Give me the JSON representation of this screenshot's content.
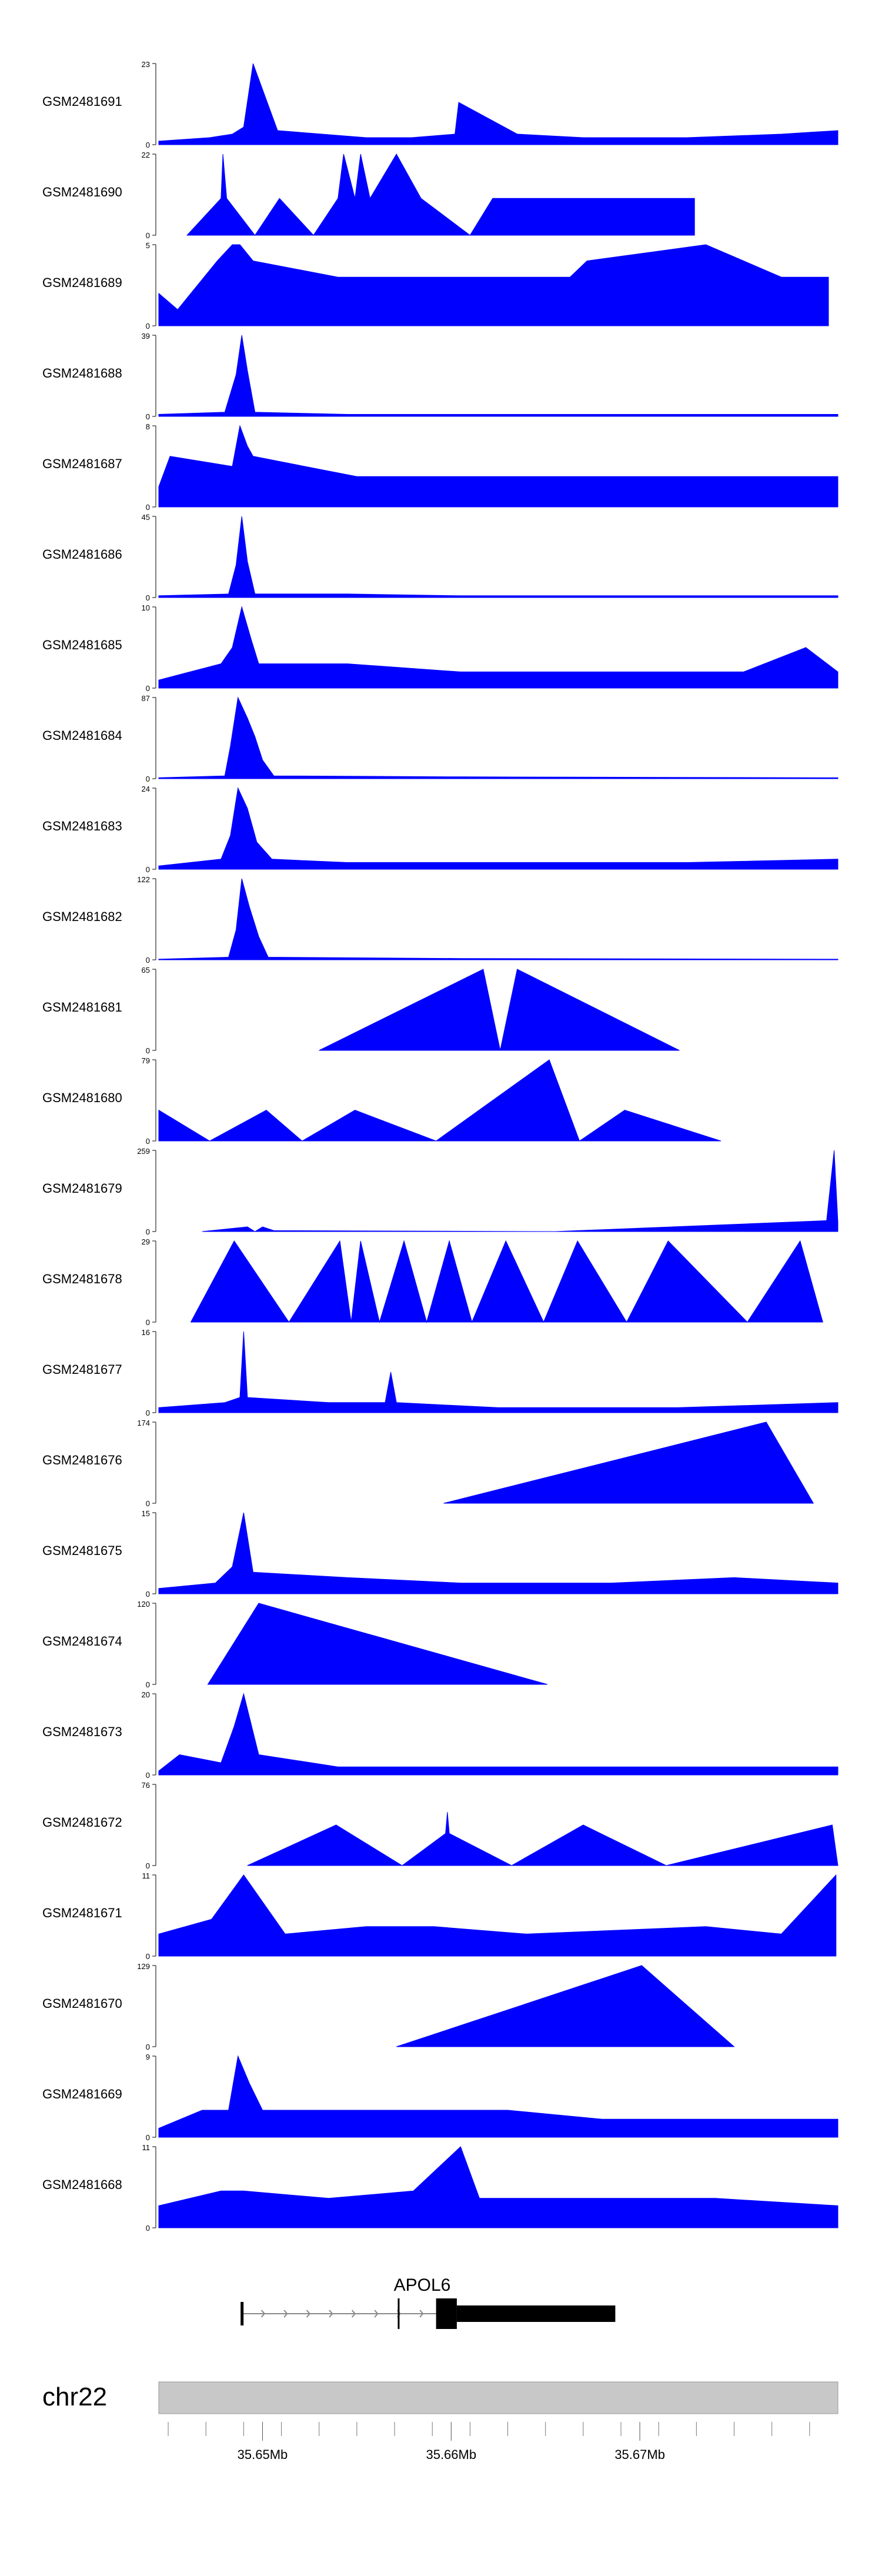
{
  "colors": {
    "signal": "#0000FF",
    "axis": "#000000",
    "gene": "#000000",
    "chrom": "#C8C8C8",
    "chrom_edge": "#999999"
  },
  "chart_data": {
    "type": "area",
    "title": "",
    "x_range_mb": [
      35.6445,
      35.6805
    ],
    "x_ticks": [
      35.65,
      35.66,
      35.67
    ],
    "x_tick_labels": [
      "35.65Mb",
      "35.66Mb",
      "35.67Mb"
    ],
    "chromosome": "chr22",
    "gene": {
      "name": "APOL6",
      "strand": "+",
      "start": 35.6489,
      "end": 35.6687,
      "thick_start": 35.6592,
      "thick_end": 35.6687,
      "first_exon_end": 35.6603
    },
    "tracks": [
      {
        "name": "GSM2481691",
        "ymax": 23,
        "x": [
          35.6445,
          35.6472,
          35.6484,
          35.649,
          35.6495,
          35.6508,
          35.6555,
          35.6579,
          35.6602,
          35.6604,
          35.6635,
          35.667,
          35.6725,
          35.6775,
          35.6805
        ],
        "y": [
          1,
          2,
          3,
          5,
          23,
          4,
          2,
          2,
          3,
          12,
          3,
          2,
          2,
          3,
          4
        ]
      },
      {
        "name": "GSM2481690",
        "ymax": 22,
        "x": [
          35.646,
          35.6478,
          35.6479,
          35.6481,
          35.6496,
          35.6509,
          35.6527,
          35.654,
          35.6543,
          35.6549,
          35.6552,
          35.6557,
          35.6571,
          35.6584,
          35.661,
          35.6622,
          35.6625,
          35.6632,
          35.6636,
          35.6642,
          35.6648,
          35.6657,
          35.6679,
          35.6706,
          35.6729
        ],
        "y": [
          0,
          10,
          22,
          10,
          0,
          10,
          0,
          10,
          22,
          10,
          22,
          10,
          22,
          10,
          0,
          10,
          10,
          10,
          10,
          10,
          10,
          10,
          10,
          10,
          10
        ]
      },
      {
        "name": "GSM2481689",
        "ymax": 5,
        "x": [
          35.6445,
          35.6455,
          35.6476,
          35.6484,
          35.6488,
          35.6495,
          35.654,
          35.6586,
          35.663,
          35.6663,
          35.6672,
          35.6735,
          35.6775,
          35.68
        ],
        "y": [
          2,
          1,
          4,
          5,
          5,
          4,
          3,
          3,
          3,
          3,
          4,
          5,
          3,
          3
        ]
      },
      {
        "name": "GSM2481688",
        "ymax": 39,
        "x": [
          35.6445,
          35.648,
          35.6486,
          35.6489,
          35.6492,
          35.6496,
          35.6545,
          35.6575,
          35.6615,
          35.668,
          35.6805
        ],
        "y": [
          1,
          2,
          20,
          39,
          22,
          2,
          1,
          1,
          1,
          1,
          1
        ]
      },
      {
        "name": "GSM2481687",
        "ymax": 8,
        "x": [
          35.6445,
          35.6451,
          35.6484,
          35.6488,
          35.6492,
          35.6495,
          35.655,
          35.661,
          35.667,
          35.6725,
          35.6805
        ],
        "y": [
          2,
          5,
          4,
          8,
          6,
          5,
          3,
          3,
          3,
          3,
          3
        ]
      },
      {
        "name": "GSM2481686",
        "ymax": 45,
        "x": [
          35.6445,
          35.6482,
          35.6486,
          35.6489,
          35.6492,
          35.6496,
          35.6545,
          35.6605,
          35.667,
          35.6805
        ],
        "y": [
          1,
          2,
          18,
          45,
          20,
          2,
          2,
          1,
          1,
          1
        ]
      },
      {
        "name": "GSM2481685",
        "ymax": 10,
        "x": [
          35.6445,
          35.6478,
          35.6484,
          35.6489,
          35.6494,
          35.6498,
          35.6545,
          35.6605,
          35.6687,
          35.6755,
          35.6788,
          35.6805
        ],
        "y": [
          1,
          3,
          5,
          10,
          6,
          3,
          3,
          2,
          2,
          2,
          5,
          2
        ]
      },
      {
        "name": "GSM2481684",
        "ymax": 87,
        "x": [
          35.6445,
          35.648,
          35.6483,
          35.6487,
          35.6492,
          35.6496,
          35.65,
          35.6506,
          35.6605,
          35.6805
        ],
        "y": [
          1,
          3,
          35,
          87,
          65,
          45,
          20,
          3,
          2,
          1
        ]
      },
      {
        "name": "GSM2481683",
        "ymax": 24,
        "x": [
          35.6445,
          35.6478,
          35.6483,
          35.6487,
          35.6492,
          35.6497,
          35.6505,
          35.6545,
          35.6625,
          35.6725,
          35.6805
        ],
        "y": [
          1,
          3,
          10,
          24,
          18,
          8,
          3,
          2,
          2,
          2,
          3
        ]
      },
      {
        "name": "GSM2481682",
        "ymax": 122,
        "x": [
          35.6445,
          35.6482,
          35.6486,
          35.6489,
          35.6493,
          35.6498,
          35.6503,
          35.6605,
          35.6805
        ],
        "y": [
          1,
          4,
          45,
          122,
          80,
          35,
          4,
          2,
          1
        ]
      },
      {
        "name": "GSM2481681",
        "ymax": 65,
        "x": [
          35.653,
          35.6617,
          35.6626,
          35.6635,
          35.6721
        ],
        "y": [
          0,
          65,
          0,
          65,
          0
        ]
      },
      {
        "name": "GSM2481680",
        "ymax": 79,
        "x": [
          35.6445,
          35.6472,
          35.6502,
          35.6521,
          35.6549,
          35.6592,
          35.6652,
          35.6668,
          35.6692,
          35.6743
        ],
        "y": [
          30,
          0,
          30,
          0,
          30,
          0,
          79,
          0,
          30,
          0
        ]
      },
      {
        "name": "GSM2481679",
        "ymax": 259,
        "x": [
          35.6468,
          35.6492,
          35.6496,
          35.65,
          35.6506,
          35.6655,
          35.6799,
          35.6803,
          35.6805
        ],
        "y": [
          0,
          15,
          0,
          15,
          3,
          0,
          35,
          259,
          30
        ]
      },
      {
        "name": "GSM2481678",
        "ymax": 29,
        "x": [
          35.6462,
          35.6485,
          35.6514,
          35.6541,
          35.6547,
          35.6552,
          35.6562,
          35.6575,
          35.6587,
          35.6599,
          35.6611,
          35.6629,
          35.6649,
          35.6667,
          35.6693,
          35.6715,
          35.6757,
          35.6785,
          35.6797
        ],
        "y": [
          0,
          29,
          0,
          29,
          0,
          29,
          0,
          29,
          0,
          29,
          0,
          29,
          0,
          29,
          0,
          29,
          0,
          29,
          0
        ]
      },
      {
        "name": "GSM2481677",
        "ymax": 16,
        "x": [
          35.6445,
          35.648,
          35.6488,
          35.649,
          35.6492,
          35.6535,
          35.6565,
          35.6568,
          35.6571,
          35.6625,
          35.672,
          35.6805
        ],
        "y": [
          1,
          2,
          3,
          16,
          3,
          2,
          2,
          8,
          2,
          1,
          1,
          2
        ]
      },
      {
        "name": "GSM2481676",
        "ymax": 174,
        "x": [
          35.6596,
          35.6767,
          35.6792
        ],
        "y": [
          0,
          174,
          0
        ]
      },
      {
        "name": "GSM2481675",
        "ymax": 15,
        "x": [
          35.6445,
          35.6475,
          35.6484,
          35.649,
          35.6495,
          35.6545,
          35.6605,
          35.6685,
          35.675,
          35.6805
        ],
        "y": [
          1,
          2,
          5,
          15,
          4,
          3,
          2,
          2,
          3,
          2
        ]
      },
      {
        "name": "GSM2481674",
        "ymax": 120,
        "x": [
          35.6471,
          35.6498,
          35.6651
        ],
        "y": [
          0,
          120,
          0
        ]
      },
      {
        "name": "GSM2481673",
        "ymax": 20,
        "x": [
          35.6445,
          35.6456,
          35.6478,
          35.6485,
          35.649,
          35.6498,
          35.654,
          35.6605,
          35.6685,
          35.6805
        ],
        "y": [
          1,
          5,
          3,
          12,
          20,
          5,
          2,
          2,
          2,
          2
        ]
      },
      {
        "name": "GSM2481672",
        "ymax": 76,
        "x": [
          35.6492,
          35.6539,
          35.6574,
          35.6597,
          35.6598,
          35.6599,
          35.6632,
          35.667,
          35.6714,
          35.6802,
          35.6805
        ],
        "y": [
          0,
          38,
          0,
          30,
          50,
          30,
          0,
          38,
          0,
          38,
          0
        ]
      },
      {
        "name": "GSM2481671",
        "ymax": 11,
        "x": [
          35.6445,
          35.6473,
          35.649,
          35.6512,
          35.6555,
          35.6591,
          35.664,
          35.6735,
          35.6775,
          35.6804
        ],
        "y": [
          3,
          5,
          11,
          3,
          4,
          4,
          3,
          4,
          3,
          11
        ]
      },
      {
        "name": "GSM2481670",
        "ymax": 129,
        "x": [
          35.6571,
          35.6701,
          35.675
        ],
        "y": [
          0,
          129,
          0
        ]
      },
      {
        "name": "GSM2481669",
        "ymax": 9,
        "x": [
          35.6445,
          35.6468,
          35.6482,
          35.6487,
          35.6493,
          35.65,
          35.6555,
          35.663,
          35.668,
          35.6805
        ],
        "y": [
          1,
          3,
          3,
          9,
          6,
          3,
          3,
          3,
          2,
          2
        ]
      },
      {
        "name": "GSM2481668",
        "ymax": 11,
        "x": [
          35.6445,
          35.6478,
          35.649,
          35.6535,
          35.658,
          35.6605,
          35.6615,
          35.668,
          35.674,
          35.6805
        ],
        "y": [
          3,
          5,
          5,
          4,
          5,
          11,
          4,
          4,
          4,
          3
        ]
      }
    ]
  }
}
